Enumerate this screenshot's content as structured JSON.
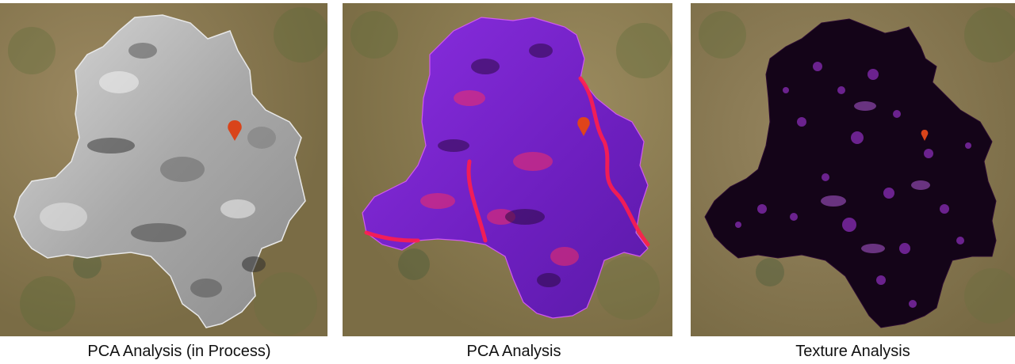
{
  "panels": [
    {
      "caption": "PCA Analysis (in Process)",
      "overlay": "grayscale",
      "overlay_color": "#b5b5b5",
      "marker_icon": "map-pin-icon",
      "marker_color": "#d9441a"
    },
    {
      "caption": "PCA Analysis",
      "overlay": "purple-red",
      "overlay_color": "#7a22d0",
      "highlight_color": "#ff1d4d",
      "marker_icon": "map-pin-icon",
      "marker_color": "#e0441a"
    },
    {
      "caption": "Texture Analysis",
      "overlay": "black-violet",
      "overlay_color": "#140418",
      "highlight_color": "#b23cf0",
      "marker_icon": "map-pin-icon",
      "marker_color": "#d9441a"
    }
  ],
  "basemap": {
    "type": "satellite",
    "colors": [
      "#8f7e55",
      "#6f6a40",
      "#a08c60",
      "#5e6a3a"
    ]
  }
}
